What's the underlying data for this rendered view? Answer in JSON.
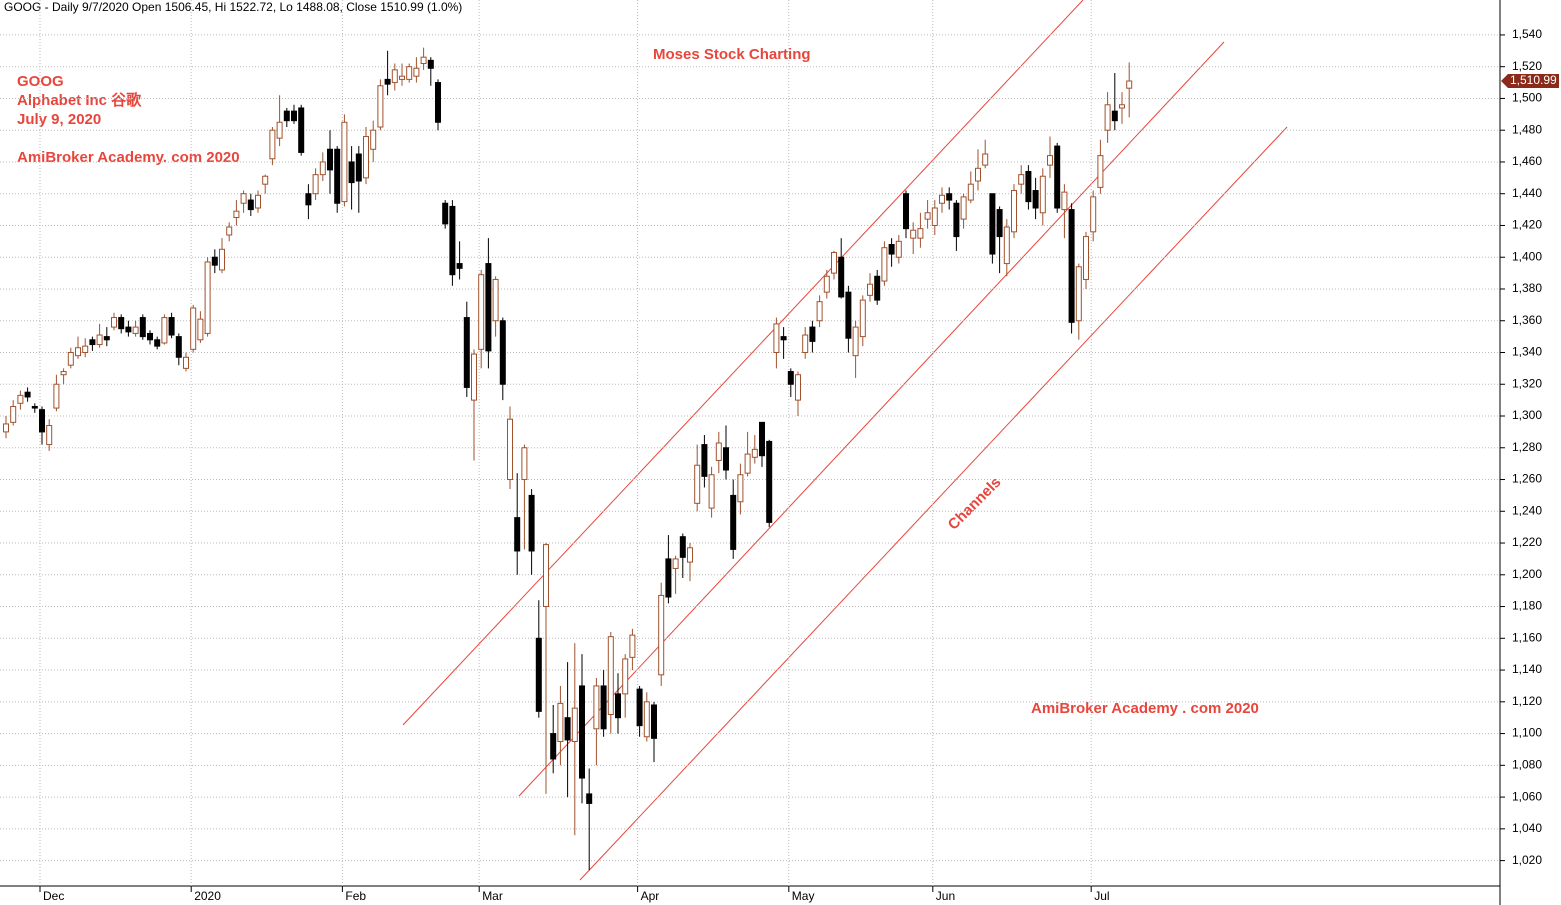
{
  "chart_data": {
    "type": "candlestick",
    "title": "GOOG - Daily 9/7/2020 Open 1506.45, Hi 1522.72, Lo 1488.08, Close 1510.99 (1.0%)",
    "annotations": [
      "GOOG",
      "Alphabet Inc 谷歌",
      "July 9, 2020",
      "AmiBroker Academy. com 2020",
      "Moses Stock Charting",
      "Channels",
      "AmiBroker Academy . com 2020"
    ],
    "last_price_label": "1,510.99",
    "up_color": "#a0522d",
    "down_color": "#000000",
    "grid": true,
    "ylim": [
      1004,
      1562
    ],
    "yticks": [
      {
        "value": 1020,
        "label": "1,020"
      },
      {
        "value": 1040,
        "label": "1,040"
      },
      {
        "value": 1060,
        "label": "1,060"
      },
      {
        "value": 1080,
        "label": "1,080"
      },
      {
        "value": 1100,
        "label": "1,100"
      },
      {
        "value": 1120,
        "label": "1,120"
      },
      {
        "value": 1140,
        "label": "1,140"
      },
      {
        "value": 1160,
        "label": "1,160"
      },
      {
        "value": 1180,
        "label": "1,180"
      },
      {
        "value": 1200,
        "label": "1,200"
      },
      {
        "value": 1220,
        "label": "1,220"
      },
      {
        "value": 1240,
        "label": "1,240"
      },
      {
        "value": 1260,
        "label": "1,260"
      },
      {
        "value": 1280,
        "label": "1,280"
      },
      {
        "value": 1300,
        "label": "1,300"
      },
      {
        "value": 1320,
        "label": "1,320"
      },
      {
        "value": 1340,
        "label": "1,340"
      },
      {
        "value": 1360,
        "label": "1,360"
      },
      {
        "value": 1380,
        "label": "1,380"
      },
      {
        "value": 1400,
        "label": "1,400"
      },
      {
        "value": 1420,
        "label": "1,420"
      },
      {
        "value": 1440,
        "label": "1,440"
      },
      {
        "value": 1460,
        "label": "1,460"
      },
      {
        "value": 1480,
        "label": "1,480"
      },
      {
        "value": 1500,
        "label": "1,500"
      },
      {
        "value": 1520,
        "label": "1,520"
      },
      {
        "value": 1540,
        "label": "1,540"
      }
    ],
    "categories": [
      null,
      null,
      null,
      null,
      null,
      "Dec",
      null,
      null,
      null,
      null,
      null,
      null,
      null,
      null,
      null,
      null,
      null,
      null,
      null,
      null,
      null,
      null,
      null,
      null,
      null,
      null,
      "2020",
      null,
      null,
      null,
      null,
      null,
      null,
      null,
      null,
      null,
      null,
      null,
      null,
      null,
      null,
      null,
      null,
      null,
      null,
      null,
      null,
      "Feb",
      null,
      null,
      null,
      null,
      null,
      null,
      null,
      null,
      null,
      null,
      null,
      null,
      null,
      null,
      null,
      null,
      null,
      null,
      "Mar",
      null,
      null,
      null,
      null,
      null,
      null,
      null,
      null,
      null,
      null,
      null,
      null,
      null,
      null,
      null,
      null,
      null,
      null,
      null,
      null,
      null,
      "Apr",
      null,
      null,
      null,
      null,
      null,
      null,
      null,
      null,
      null,
      null,
      null,
      null,
      null,
      null,
      null,
      null,
      null,
      null,
      null,
      null,
      "May",
      null,
      null,
      null,
      null,
      null,
      null,
      null,
      null,
      null,
      null,
      null,
      null,
      null,
      null,
      null,
      null,
      null,
      null,
      null,
      "Jun",
      null,
      null,
      null,
      null,
      null,
      null,
      null,
      null,
      null,
      null,
      null,
      null,
      null,
      null,
      null,
      null,
      null,
      null,
      null,
      null,
      null,
      "Jul",
      null,
      null,
      null,
      null,
      null
    ],
    "ohlc": [
      [
        1290,
        1300,
        1286,
        1295
      ],
      [
        1296,
        1310,
        1294,
        1306
      ],
      [
        1308,
        1316,
        1304,
        1313
      ],
      [
        1315,
        1318,
        1309,
        1312
      ],
      [
        1306,
        1308,
        1302,
        1305
      ],
      [
        1304,
        1306,
        1282,
        1290
      ],
      [
        1282,
        1298,
        1278,
        1294
      ],
      [
        1305,
        1326,
        1303,
        1320
      ],
      [
        1326,
        1330,
        1320,
        1328
      ],
      [
        1332,
        1343,
        1330,
        1340
      ],
      [
        1338,
        1350,
        1336,
        1343
      ],
      [
        1340,
        1349,
        1337,
        1344
      ],
      [
        1348,
        1350,
        1341,
        1345
      ],
      [
        1345,
        1358,
        1343,
        1351
      ],
      [
        1350,
        1356,
        1344,
        1348
      ],
      [
        1356,
        1365,
        1354,
        1362
      ],
      [
        1362,
        1364,
        1352,
        1355
      ],
      [
        1356,
        1360,
        1350,
        1353
      ],
      [
        1352,
        1360,
        1350,
        1356
      ],
      [
        1362,
        1364,
        1348,
        1350
      ],
      [
        1352,
        1354,
        1345,
        1348
      ],
      [
        1348,
        1350,
        1342,
        1344
      ],
      [
        1346,
        1364,
        1345,
        1362
      ],
      [
        1362,
        1365,
        1349,
        1351
      ],
      [
        1350,
        1352,
        1332,
        1337
      ],
      [
        1330,
        1340,
        1328,
        1337
      ],
      [
        1342,
        1370,
        1340,
        1368
      ],
      [
        1348,
        1366,
        1346,
        1361
      ],
      [
        1352,
        1400,
        1350,
        1397
      ],
      [
        1400,
        1405,
        1390,
        1395
      ],
      [
        1392,
        1412,
        1390,
        1405
      ],
      [
        1414,
        1422,
        1410,
        1419
      ],
      [
        1425,
        1436,
        1420,
        1429
      ],
      [
        1434,
        1442,
        1428,
        1440
      ],
      [
        1436,
        1440,
        1426,
        1430
      ],
      [
        1431,
        1442,
        1428,
        1439
      ],
      [
        1446,
        1452,
        1440,
        1451
      ],
      [
        1462,
        1482,
        1458,
        1480
      ],
      [
        1475,
        1502,
        1470,
        1485
      ],
      [
        1492,
        1494,
        1482,
        1486
      ],
      [
        1492,
        1496,
        1484,
        1486
      ],
      [
        1494,
        1496,
        1464,
        1466
      ],
      [
        1440,
        1446,
        1424,
        1433
      ],
      [
        1440,
        1456,
        1436,
        1452
      ],
      [
        1452,
        1466,
        1448,
        1460
      ],
      [
        1468,
        1480,
        1440,
        1455
      ],
      [
        1468,
        1470,
        1428,
        1434
      ],
      [
        1435,
        1490,
        1432,
        1485
      ],
      [
        1460,
        1470,
        1430,
        1447
      ],
      [
        1465,
        1470,
        1428,
        1448
      ],
      [
        1450,
        1482,
        1446,
        1476
      ],
      [
        1468,
        1486,
        1460,
        1480
      ],
      [
        1482,
        1512,
        1480,
        1508
      ],
      [
        1512,
        1530,
        1502,
        1509
      ],
      [
        1510,
        1522,
        1505,
        1518
      ],
      [
        1512,
        1522,
        1508,
        1514
      ],
      [
        1512,
        1522,
        1510,
        1520
      ],
      [
        1514,
        1526,
        1510,
        1519
      ],
      [
        1522,
        1532,
        1518,
        1526
      ],
      [
        1524,
        1526,
        1508,
        1519
      ],
      [
        1510,
        1512,
        1480,
        1485
      ],
      [
        1434,
        1436,
        1418,
        1421
      ],
      [
        1432,
        1436,
        1382,
        1389
      ],
      [
        1396,
        1410,
        1386,
        1393
      ],
      [
        1362,
        1372,
        1312,
        1318
      ],
      [
        1310,
        1342,
        1272,
        1339
      ],
      [
        1342,
        1392,
        1330,
        1389
      ],
      [
        1396,
        1412,
        1330,
        1341
      ],
      [
        1360,
        1388,
        1350,
        1386
      ],
      [
        1360,
        1362,
        1310,
        1320
      ],
      [
        1260,
        1306,
        1254,
        1298
      ],
      [
        1236,
        1264,
        1200,
        1215
      ],
      [
        1260,
        1282,
        1216,
        1280
      ],
      [
        1250,
        1254,
        1200,
        1215
      ],
      [
        1160,
        1184,
        1110,
        1114
      ],
      [
        1180,
        1220,
        1062,
        1219
      ],
      [
        1100,
        1118,
        1075,
        1084
      ],
      [
        1095,
        1130,
        1080,
        1119
      ],
      [
        1110,
        1145,
        1060,
        1096
      ],
      [
        1095,
        1157,
        1036,
        1116
      ],
      [
        1130,
        1150,
        1056,
        1072
      ],
      [
        1062,
        1078,
        1014,
        1056
      ],
      [
        1103,
        1135,
        1080,
        1130
      ],
      [
        1130,
        1140,
        1098,
        1103
      ],
      [
        1112,
        1164,
        1100,
        1161
      ],
      [
        1125,
        1138,
        1100,
        1110
      ],
      [
        1125,
        1150,
        1110,
        1147
      ],
      [
        1148,
        1166,
        1140,
        1162
      ],
      [
        1128,
        1130,
        1098,
        1105
      ],
      [
        1098,
        1126,
        1095,
        1120
      ],
      [
        1118,
        1120,
        1082,
        1097
      ],
      [
        1137,
        1195,
        1130,
        1187
      ],
      [
        1210,
        1225,
        1182,
        1186
      ],
      [
        1204,
        1212,
        1188,
        1210
      ],
      [
        1224,
        1226,
        1198,
        1211
      ],
      [
        1208,
        1220,
        1196,
        1217
      ],
      [
        1245,
        1282,
        1240,
        1269
      ],
      [
        1282,
        1288,
        1255,
        1262
      ],
      [
        1242,
        1268,
        1236,
        1263
      ],
      [
        1272,
        1290,
        1264,
        1283
      ],
      [
        1280,
        1294,
        1260,
        1266
      ],
      [
        1250,
        1260,
        1210,
        1216
      ],
      [
        1246,
        1270,
        1238,
        1263
      ],
      [
        1264,
        1290,
        1262,
        1276
      ],
      [
        1274,
        1288,
        1270,
        1279
      ],
      [
        1296,
        1296,
        1268,
        1275
      ],
      [
        1284,
        1285,
        1230,
        1233
      ],
      [
        1340,
        1362,
        1330,
        1358
      ],
      [
        1350,
        1356,
        1336,
        1348
      ],
      [
        1328,
        1330,
        1312,
        1320
      ],
      [
        1310,
        1328,
        1300,
        1326
      ],
      [
        1340,
        1356,
        1336,
        1351
      ],
      [
        1356,
        1360,
        1340,
        1347
      ],
      [
        1360,
        1376,
        1356,
        1372
      ],
      [
        1378,
        1392,
        1374,
        1388
      ],
      [
        1390,
        1404,
        1386,
        1403
      ],
      [
        1400,
        1412,
        1374,
        1375
      ],
      [
        1378,
        1382,
        1340,
        1349
      ],
      [
        1338,
        1360,
        1324,
        1356
      ],
      [
        1350,
        1376,
        1344,
        1373
      ],
      [
        1376,
        1390,
        1372,
        1383
      ],
      [
        1388,
        1392,
        1370,
        1373
      ],
      [
        1385,
        1410,
        1382,
        1406
      ],
      [
        1408,
        1412,
        1394,
        1402
      ],
      [
        1400,
        1414,
        1396,
        1410
      ],
      [
        1440,
        1442,
        1412,
        1418
      ],
      [
        1412,
        1422,
        1402,
        1417
      ],
      [
        1412,
        1428,
        1406,
        1418
      ],
      [
        1424,
        1436,
        1418,
        1428
      ],
      [
        1420,
        1436,
        1414,
        1431
      ],
      [
        1434,
        1444,
        1428,
        1439
      ],
      [
        1440,
        1444,
        1430,
        1436
      ],
      [
        1434,
        1436,
        1404,
        1413
      ],
      [
        1424,
        1440,
        1418,
        1438
      ],
      [
        1436,
        1454,
        1434,
        1446
      ],
      [
        1448,
        1468,
        1442,
        1456
      ],
      [
        1458,
        1474,
        1456,
        1465
      ],
      [
        1440,
        1440,
        1396,
        1402
      ],
      [
        1430,
        1432,
        1390,
        1413
      ],
      [
        1396,
        1424,
        1388,
        1419
      ],
      [
        1416,
        1446,
        1412,
        1442
      ],
      [
        1446,
        1458,
        1440,
        1452
      ],
      [
        1454,
        1458,
        1430,
        1435
      ],
      [
        1442,
        1450,
        1424,
        1431
      ],
      [
        1428,
        1456,
        1420,
        1451
      ],
      [
        1458,
        1476,
        1450,
        1464
      ],
      [
        1470,
        1472,
        1428,
        1431
      ],
      [
        1430,
        1446,
        1412,
        1441
      ],
      [
        1430,
        1434,
        1352,
        1359
      ],
      [
        1360,
        1396,
        1348,
        1394
      ],
      [
        1386,
        1416,
        1380,
        1413
      ],
      [
        1416,
        1442,
        1410,
        1438
      ],
      [
        1444,
        1474,
        1440,
        1464
      ],
      [
        1480,
        1504,
        1472,
        1496
      ],
      [
        1492,
        1516,
        1480,
        1486
      ],
      [
        1494,
        1504,
        1484,
        1496
      ],
      [
        1506.45,
        1522.72,
        1488.08,
        1510.99
      ]
    ]
  }
}
